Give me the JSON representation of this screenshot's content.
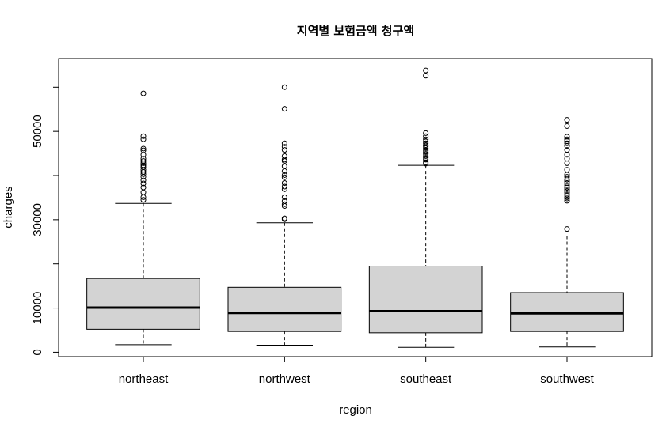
{
  "chart_data": {
    "type": "boxplot",
    "title": "지역별 보험금액 청구액",
    "xlabel": "region",
    "ylabel": "charges",
    "ylim": [
      -1000,
      66500
    ],
    "yticks": [
      0,
      10000,
      30000,
      50000
    ],
    "ytick_labels": [
      "0",
      "10000",
      "30000",
      "50000"
    ],
    "box_color": "#d3d3d3",
    "grid": false,
    "categories": [
      "northeast",
      "northwest",
      "southeast",
      "southwest"
    ],
    "boxes": [
      {
        "name": "northeast",
        "whisker_low": 1700,
        "q1": 5200,
        "median": 10100,
        "q3": 16700,
        "whisker_high": 33700,
        "outliers": [
          58600,
          48900,
          48200,
          46100,
          45700,
          44700,
          43800,
          43300,
          42800,
          42300,
          41900,
          41300,
          40800,
          40300,
          39700,
          38900,
          38200,
          37300,
          36200,
          35100,
          34500
        ]
      },
      {
        "name": "northwest",
        "whisker_low": 1600,
        "q1": 4700,
        "median": 8900,
        "q3": 14700,
        "whisker_high": 29300,
        "outliers": [
          60000,
          55100,
          47300,
          46500,
          45800,
          44400,
          43600,
          43300,
          42100,
          41000,
          40100,
          39600,
          38300,
          37500,
          36900,
          35100,
          34200,
          33500,
          33100,
          30300,
          30100
        ]
      },
      {
        "name": "southeast",
        "whisker_low": 1100,
        "q1": 4400,
        "median": 9300,
        "q3": 19500,
        "whisker_high": 42300,
        "outliers": [
          63800,
          62600,
          49600,
          48900,
          48200,
          47700,
          47300,
          46900,
          46600,
          46200,
          45700,
          45300,
          44900,
          44400,
          44000,
          43600,
          43000,
          42700
        ]
      },
      {
        "name": "southwest",
        "whisker_low": 1200,
        "q1": 4700,
        "median": 8800,
        "q3": 13500,
        "whisker_high": 26300,
        "outliers": [
          52600,
          51200,
          48800,
          48200,
          47800,
          47300,
          46700,
          45800,
          44700,
          43800,
          42800,
          41300,
          40200,
          39700,
          39100,
          38700,
          38300,
          37800,
          37300,
          36900,
          36500,
          36100,
          35600,
          35100,
          34800,
          34300,
          27900
        ]
      }
    ]
  }
}
